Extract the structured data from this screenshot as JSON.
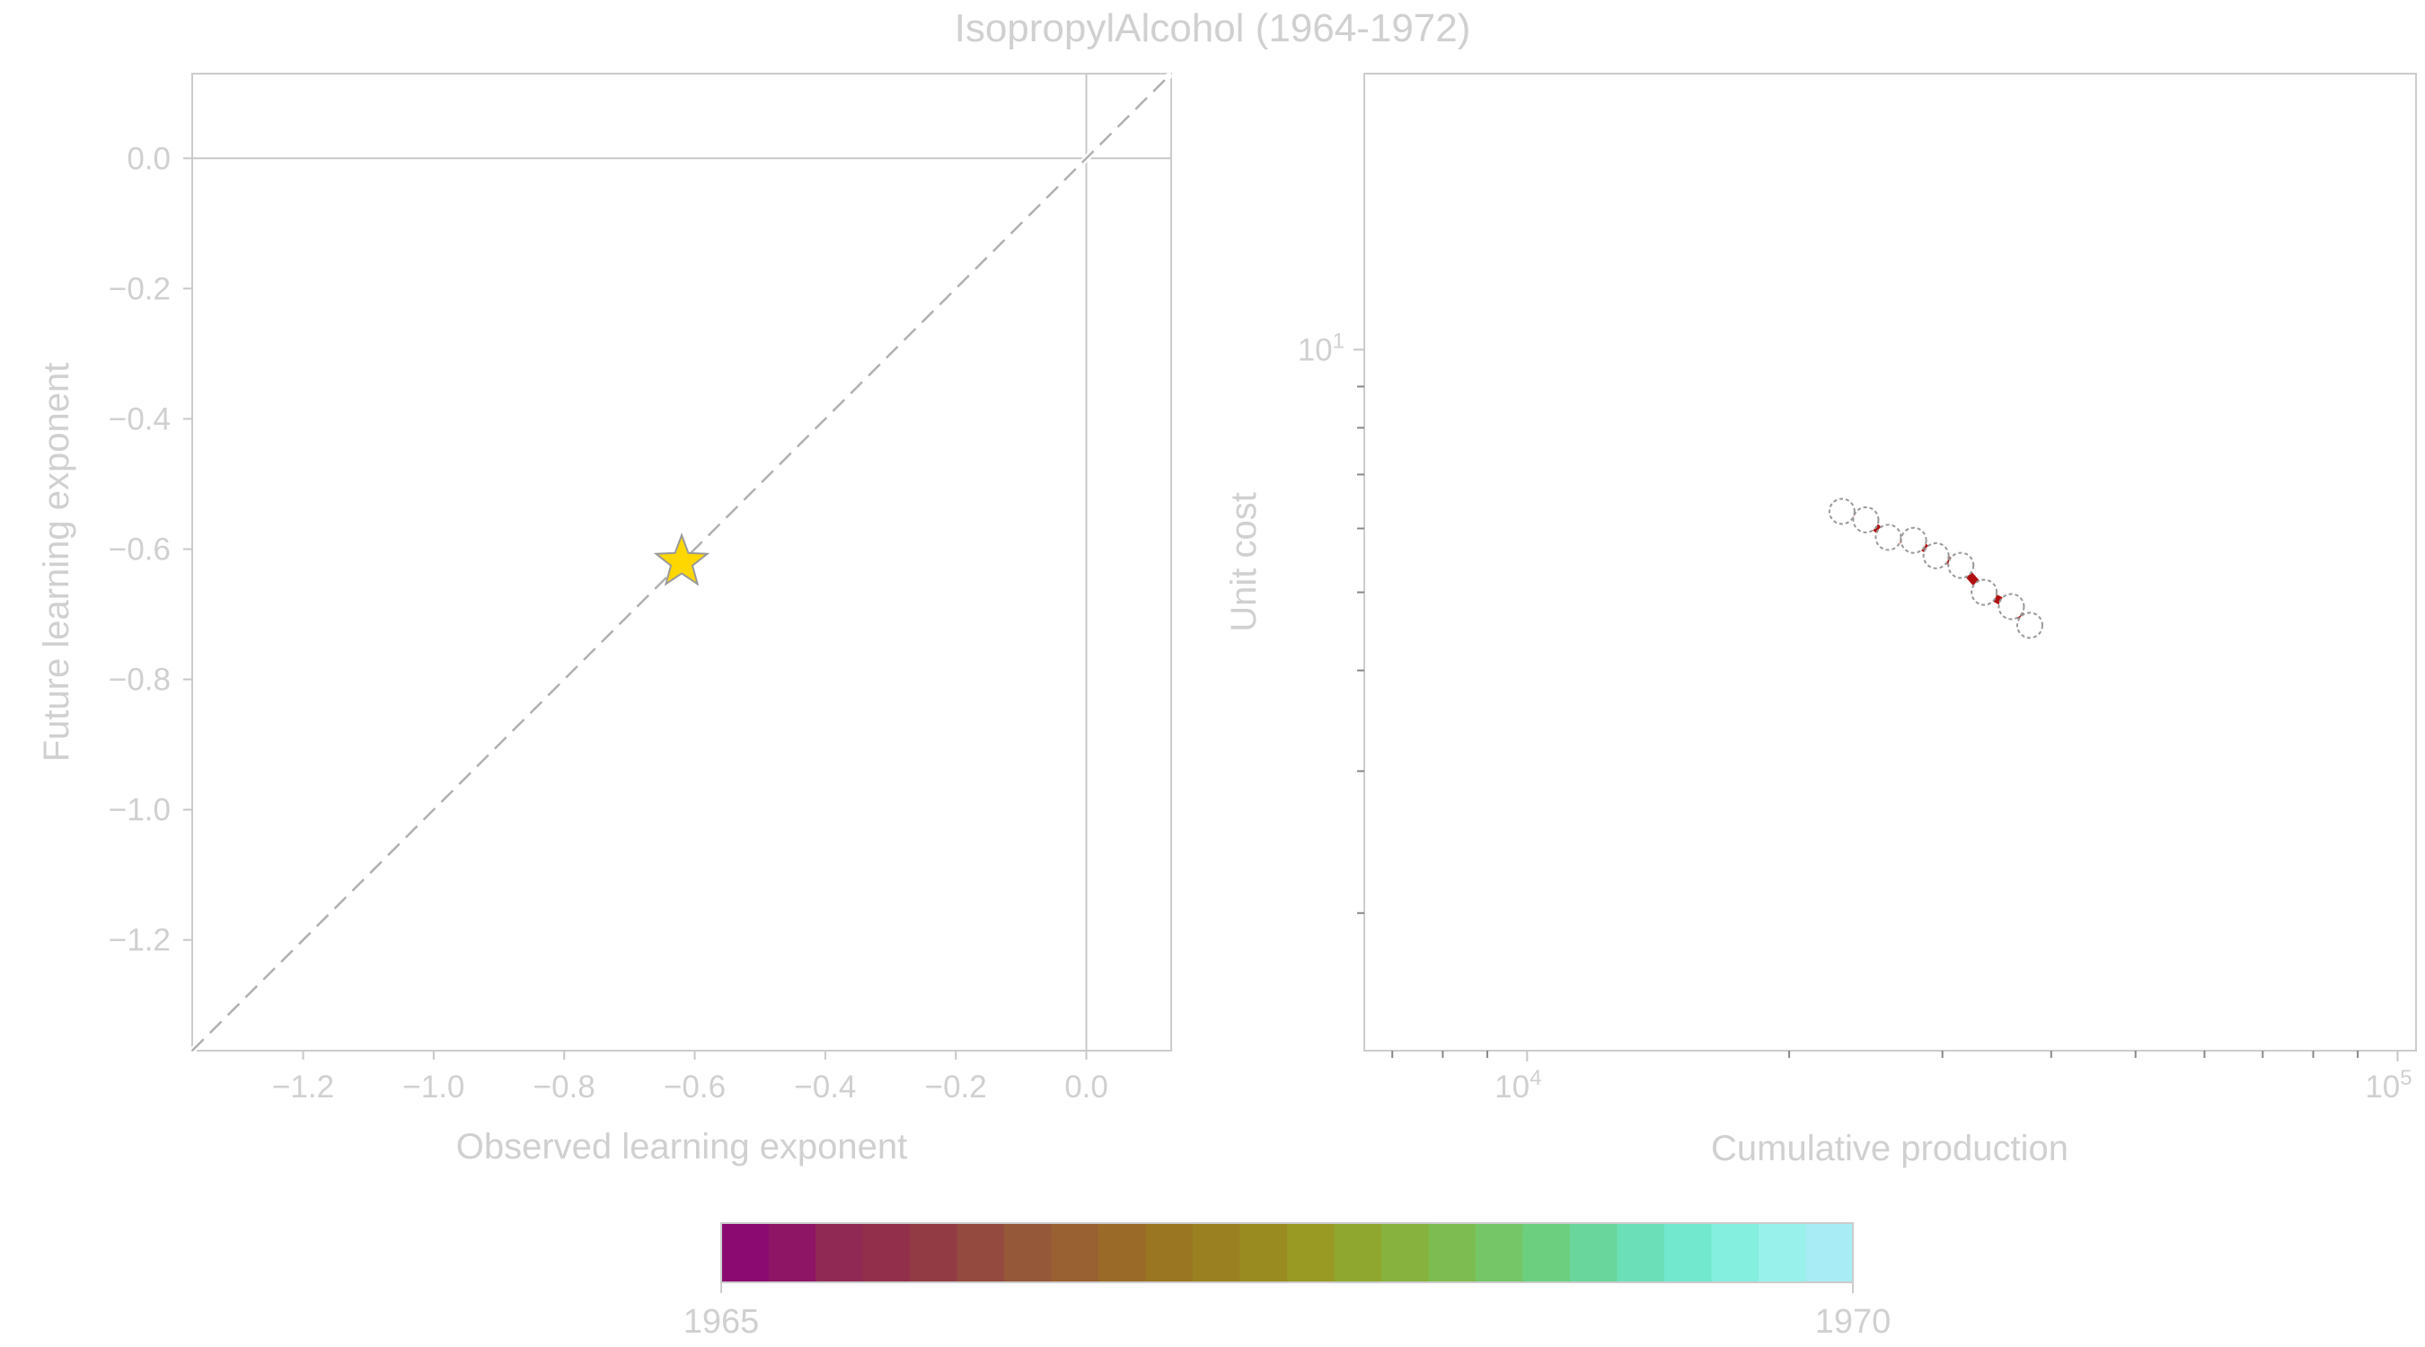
{
  "title": "IsopropylAlcohol (1964-1972)",
  "colors": {
    "text": "#d0d0d0",
    "axis": "#c8c8c8",
    "frame": "#cccccc",
    "diagonal": "#b0b0b0",
    "star_fill": "#ffd700",
    "star_stroke": "#999999",
    "segment": "#b01010",
    "marker_stroke": "#999999"
  },
  "chart_data": [
    {
      "type": "scatter",
      "xlabel": "Observed learning exponent",
      "ylabel": "Future learning exponent",
      "xlim": [
        -1.37,
        0.13
      ],
      "ylim": [
        -1.37,
        0.13
      ],
      "xticks": [
        -1.2,
        -1.0,
        -0.8,
        -0.6,
        -0.4,
        -0.2,
        0.0
      ],
      "xtick_labels": [
        "−1.2",
        "−1.0",
        "−0.8",
        "−0.6",
        "−0.4",
        "−0.2",
        "0.0"
      ],
      "yticks": [
        0.0,
        -0.2,
        -0.4,
        -0.6,
        -0.8,
        -1.0,
        -1.2
      ],
      "ytick_labels": [
        "0.0",
        "−0.2",
        "−0.4",
        "−0.6",
        "−0.8",
        "−1.0",
        "−1.2"
      ],
      "reference_lines": {
        "diagonal": true,
        "x0": 0.0,
        "y0": 0.0
      },
      "points": [
        {
          "x": -0.62,
          "y": -0.62,
          "marker": "star"
        }
      ]
    },
    {
      "type": "line",
      "xlabel": "Cumulative production",
      "ylabel": "Unit cost",
      "xscale": "log",
      "yscale": "log",
      "xlim": [
        6500,
        105000
      ],
      "ylim": [
        1.35,
        22
      ],
      "xtick_labels": [
        {
          "value": 10000,
          "base": "10",
          "exp": "4"
        },
        {
          "value": 100000,
          "base": "10",
          "exp": "5"
        }
      ],
      "ytick_labels": [
        {
          "value": 10,
          "base": "10",
          "exp": "1"
        }
      ],
      "x": [
        23000,
        24500,
        26000,
        27800,
        29500,
        31500,
        33500,
        36000,
        37800
      ],
      "y": [
        6.3,
        6.15,
        5.85,
        5.8,
        5.55,
        5.4,
        5.0,
        4.8,
        4.55
      ]
    }
  ],
  "colorbar": {
    "min_label": "1965",
    "max_label": "1970",
    "colors": [
      "#8b0a72",
      "#8e1466",
      "#902a55",
      "#92304c",
      "#923b45",
      "#944a3e",
      "#955839",
      "#996131",
      "#9a6b28",
      "#9a7522",
      "#9a8020",
      "#9a8b20",
      "#989a24",
      "#8fa72e",
      "#86b23d",
      "#7dbc50",
      "#74c666",
      "#6ccf80",
      "#69d69c",
      "#6be0b8",
      "#72e8cf",
      "#84eedf",
      "#98f1eb",
      "#a8ecf5"
    ]
  }
}
